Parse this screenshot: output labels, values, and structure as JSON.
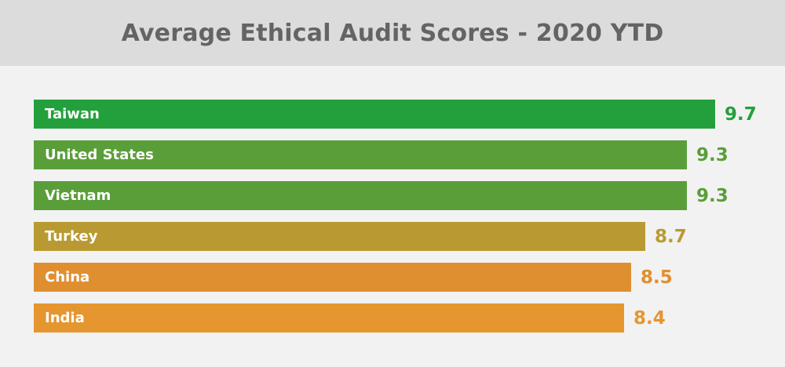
{
  "chart_data": {
    "type": "bar",
    "orientation": "horizontal",
    "title": "Average Ethical Audit Scores - 2020 YTD",
    "xlabel": "",
    "ylabel": "",
    "xlim": [
      0,
      10
    ],
    "grid": false,
    "legend": "none",
    "categories": [
      "Taiwan",
      "United States",
      "Vietnam",
      "Turkey",
      "China",
      "India"
    ],
    "values": [
      9.7,
      9.3,
      9.3,
      8.7,
      8.5,
      8.4
    ],
    "value_labels": [
      "9.7",
      "9.3",
      "9.3",
      "8.7",
      "8.5",
      "8.4"
    ],
    "bar_colors": [
      "#23a03c",
      "#5a9e3a",
      "#5a9e3a",
      "#b99a32",
      "#e08f30",
      "#e6962e"
    ],
    "label_colors": [
      "#23a03c",
      "#5a9e3a",
      "#5a9e3a",
      "#b99a32",
      "#e08f30",
      "#e6962e"
    ]
  },
  "colors": {
    "header_bg": "#dcdcdc",
    "background": "#f2f2f2",
    "title": "#636466"
  }
}
